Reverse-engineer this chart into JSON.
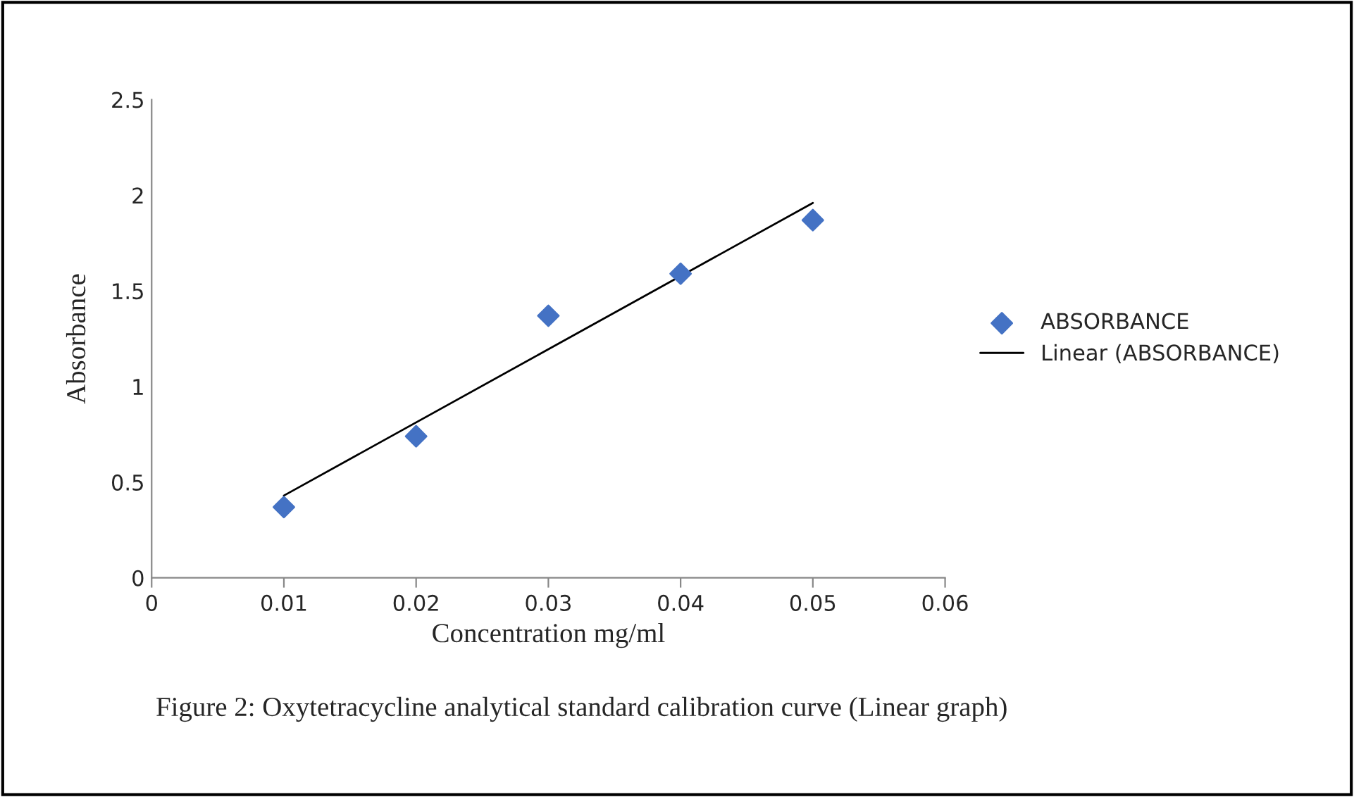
{
  "chart_data": {
    "type": "scatter",
    "xlabel": "Concentration mg/ml",
    "ylabel": "Absorbance",
    "xlim": [
      0,
      0.06
    ],
    "xticks": [
      0,
      0.01,
      0.02,
      0.03,
      0.04,
      0.05,
      0.06
    ],
    "ylim": [
      0,
      2.5
    ],
    "yticks": [
      0,
      0.5,
      1,
      1.5,
      2,
      2.5
    ],
    "x": [
      0.01,
      0.02,
      0.03,
      0.04,
      0.05
    ],
    "series": [
      {
        "name": "ABSORBANCE",
        "color": "#4472c4",
        "marker": "diamond",
        "values": [
          0.37,
          0.74,
          1.37,
          1.59,
          1.87
        ]
      },
      {
        "name": "Linear (ABSORBANCE)",
        "type": "line",
        "color": "#000000",
        "line_style": "solid",
        "marker": "none",
        "x": [
          0.01,
          0.05
        ],
        "values": [
          0.43,
          1.96
        ]
      }
    ],
    "legend": "right",
    "grid": false,
    "annotations": [
      "Figure 2: Oxytetracycline analytical standard calibration curve (Linear graph)"
    ]
  }
}
